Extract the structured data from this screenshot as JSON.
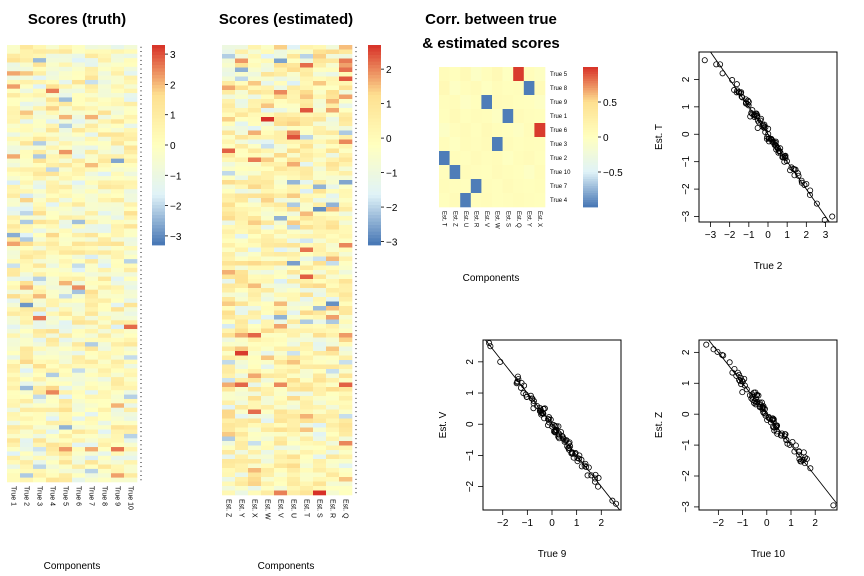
{
  "chart_data": [
    {
      "type": "heatmap",
      "title": "Scores (truth)",
      "xlabel": "Components",
      "columns": [
        "True 1",
        "True 2",
        "True 3",
        "True 4",
        "True 5",
        "True 6",
        "True 7",
        "True 8",
        "True 9",
        "True 10"
      ],
      "rows": 100,
      "color_scale": {
        "ticks": [
          3,
          2,
          1,
          0,
          -1,
          -2,
          -3
        ],
        "range": [
          -3.3,
          3.3
        ],
        "colors": [
          "#4575b4",
          "#e0f3f8",
          "#ffffbf",
          "#fee090",
          "#d73027"
        ]
      }
    },
    {
      "type": "heatmap",
      "title": "Scores (estimated)",
      "xlabel": "Components",
      "columns": [
        "Est. Z",
        "Est. Y",
        "Est. X",
        "Est. W",
        "Est. V",
        "Est. U",
        "Est. T",
        "Est. S",
        "Est. R",
        "Est. Q"
      ],
      "rows": 100,
      "color_scale": {
        "ticks": [
          2,
          1,
          0,
          -1,
          -2,
          -3
        ],
        "range": [
          -3.1,
          2.7
        ],
        "colors": [
          "#4575b4",
          "#e0f3f8",
          "#ffffbf",
          "#fee090",
          "#d73027"
        ]
      }
    },
    {
      "type": "heatmap",
      "title": "Corr. between true\n& estimated scores",
      "title_lines": [
        "Corr. between true",
        "& estimated scores"
      ],
      "xlabel": "Components",
      "columns": [
        "Est. T",
        "Est. Z",
        "Est. U",
        "Est. R",
        "Est. V",
        "Est. W",
        "Est. S",
        "Est. Q",
        "Est. Y",
        "Est. X"
      ],
      "rows": [
        "True 5",
        "True 8",
        "True 9",
        "True 1",
        "True 6",
        "True 3",
        "True 2",
        "True 10",
        "True 7",
        "True 4"
      ],
      "values": [
        [
          0.05,
          0.02,
          0.08,
          -0.05,
          0.03,
          0.1,
          -0.02,
          0.97,
          0.04,
          -0.03
        ],
        [
          0.1,
          -0.04,
          0.03,
          0.06,
          -0.02,
          0.05,
          0.02,
          0.03,
          -0.97,
          0.06
        ],
        [
          0.03,
          0.05,
          -0.04,
          0.02,
          -0.97,
          0.06,
          0.05,
          0.02,
          0.01,
          -0.04
        ],
        [
          0.02,
          0.08,
          0.02,
          0.05,
          0.04,
          -0.03,
          -0.97,
          0.06,
          0.03,
          0.02
        ],
        [
          -0.05,
          0.03,
          0.06,
          0.02,
          0.08,
          0.04,
          0.02,
          -0.03,
          0.05,
          0.97
        ],
        [
          0.04,
          -0.02,
          0.05,
          0.03,
          0.06,
          -0.97,
          0.05,
          0.02,
          0.04,
          0.03
        ],
        [
          -0.97,
          0.04,
          0.02,
          0.06,
          0.03,
          0.05,
          -0.02,
          0.04,
          0.06,
          0.02
        ],
        [
          0.03,
          -0.97,
          0.05,
          0.03,
          0.02,
          0.06,
          0.04,
          0.02,
          -0.04,
          0.05
        ],
        [
          0.05,
          0.03,
          0.02,
          -0.97,
          0.04,
          0.02,
          0.06,
          0.03,
          0.02,
          0.04
        ],
        [
          0.02,
          0.06,
          -0.97,
          0.03,
          0.05,
          0.02,
          0.03,
          0.05,
          0.03,
          0.02
        ]
      ],
      "color_scale": {
        "ticks": [
          0.5,
          0,
          -0.5
        ],
        "range": [
          -1,
          1
        ],
        "colors": [
          "#4575b4",
          "#e0f3f8",
          "#ffffbf",
          "#fee090",
          "#d73027"
        ]
      }
    },
    {
      "type": "scatter",
      "xlabel": "True 2",
      "ylabel": "Est. T",
      "xlim": [
        -3.6,
        3.6
      ],
      "ylim": [
        -3.2,
        3.0
      ],
      "xticks": [
        -3,
        -2,
        -1,
        0,
        1,
        2,
        3
      ],
      "yticks": [
        -3,
        -2,
        -1,
        0,
        1,
        2
      ],
      "line": {
        "slope": -1,
        "intercept": 0
      },
      "spread": 0.11,
      "seed": 7,
      "n": 100,
      "x_anchors": [
        -3.3,
        -2.7,
        -2.5,
        3.35,
        2.2,
        -1.6,
        1.9
      ],
      "y_anchors": [
        2.7,
        2.55,
        2.55,
        -3.0,
        -2.05,
        1.6,
        -1.85
      ]
    },
    {
      "type": "scatter",
      "xlabel": "True 9",
      "ylabel": "Est. V",
      "xlim": [
        -2.8,
        2.8
      ],
      "ylim": [
        -2.75,
        2.7
      ],
      "xticks": [
        -2,
        -1,
        0,
        1,
        2
      ],
      "yticks": [
        -2,
        -1,
        0,
        1,
        2
      ],
      "line": {
        "slope": -1,
        "intercept": 0
      },
      "spread": 0.1,
      "seed": 19,
      "n": 100,
      "x_anchors": [
        -2.55,
        -2.5,
        2.45,
        2.6,
        -2.1
      ],
      "y_anchors": [
        2.6,
        2.5,
        -2.45,
        -2.55,
        2.0
      ]
    },
    {
      "type": "scatter",
      "xlabel": "True 10",
      "ylabel": "Est. Z",
      "xlim": [
        -2.8,
        2.9
      ],
      "ylim": [
        -3.1,
        2.4
      ],
      "xticks": [
        -2,
        -1,
        0,
        1,
        2
      ],
      "yticks": [
        -3,
        -2,
        -1,
        0,
        1,
        2
      ],
      "line": {
        "slope": -1,
        "intercept": 0
      },
      "spread": 0.12,
      "seed": 31,
      "n": 100,
      "x_anchors": [
        -2.5,
        -2.2,
        2.75,
        1.8,
        -1.8
      ],
      "y_anchors": [
        2.25,
        2.1,
        -2.95,
        -1.75,
        1.9
      ]
    }
  ]
}
